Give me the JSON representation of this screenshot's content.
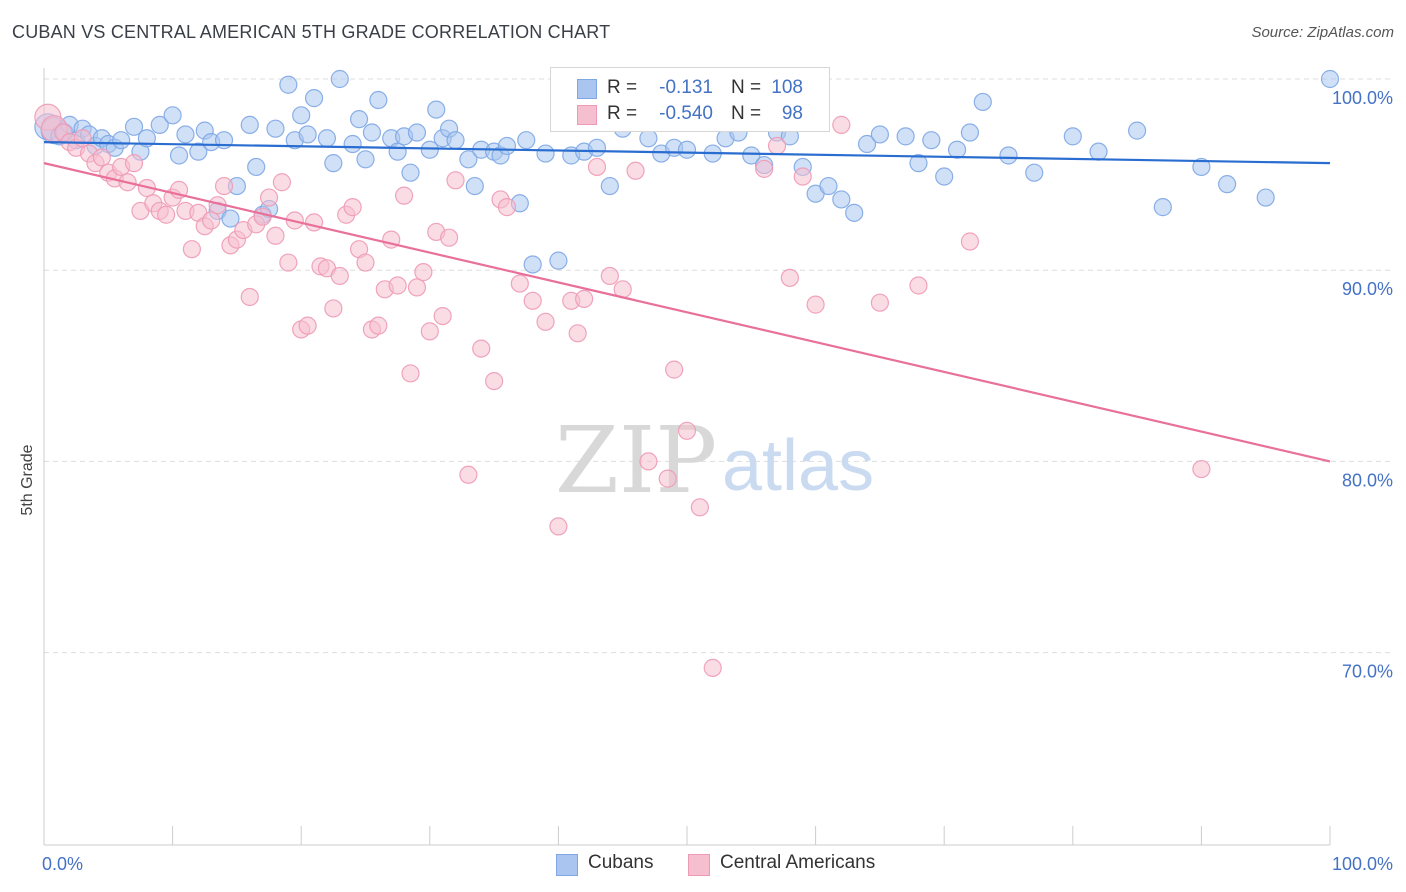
{
  "header": {
    "title": "CUBAN VS CENTRAL AMERICAN 5TH GRADE CORRELATION CHART",
    "source": "Source: ZipAtlas.com"
  },
  "watermark": {
    "zip": "ZIP",
    "atlas": "atlas"
  },
  "legend": {
    "r_label": "R =",
    "n_label": "N =",
    "rows": [
      {
        "series": "Cubans",
        "r": "-0.131",
        "n": "108",
        "color": "#6b9be0"
      },
      {
        "series": "Central Americans",
        "r": "-0.540",
        "n": "98",
        "color": "#f09ab5"
      }
    ]
  },
  "bottom_legend": {
    "items": [
      "Cubans",
      "Central Americans"
    ]
  },
  "colors": {
    "cubans_fill": "#aac6f0",
    "cubans_stroke": "#7ea7e4",
    "cubans_line": "#2a6dd0",
    "central_fill": "#f6bfd0",
    "central_stroke": "#ee9ab6",
    "central_line": "#e8709a",
    "grid": "#dddddd",
    "axis_text": "#4472c4"
  },
  "chart_data": {
    "type": "scatter",
    "title": "CUBAN VS CENTRAL AMERICAN 5TH GRADE CORRELATION CHART",
    "xlabel": "",
    "ylabel": "5th Grade",
    "x_tick_labels": [
      "0.0%",
      "100.0%"
    ],
    "y_tick_labels": [
      "100.0%",
      "90.0%",
      "80.0%",
      "70.0%"
    ],
    "y_ticks": [
      100,
      90,
      80,
      70
    ],
    "xlim": [
      0,
      100
    ],
    "ylim": [
      61,
      101.5
    ],
    "grid": true,
    "legend_position": "top-center",
    "series": [
      {
        "name": "Cubans",
        "r": -0.131,
        "n": 108,
        "trend": {
          "x": [
            0,
            100
          ],
          "y": [
            96.7,
            95.6
          ]
        },
        "x": [
          0.3,
          0.8,
          1.2,
          1.6,
          2.0,
          2.5,
          3.0,
          3.5,
          4.0,
          4.5,
          5.0,
          5.5,
          6.0,
          7.0,
          7.5,
          8.0,
          9.0,
          10.0,
          10.5,
          11.0,
          12.0,
          12.5,
          13.0,
          13.5,
          14.0,
          14.5,
          15.0,
          16.0,
          16.5,
          17.0,
          17.5,
          18.0,
          19.0,
          19.5,
          20.0,
          20.5,
          21.0,
          22.0,
          22.5,
          23.0,
          24.0,
          24.5,
          25.0,
          25.5,
          26.0,
          27.0,
          27.5,
          28.0,
          28.5,
          29.0,
          30.0,
          30.5,
          31.0,
          31.5,
          32.0,
          33.0,
          33.5,
          34.0,
          35.0,
          35.5,
          36.0,
          37.0,
          37.5,
          38.0,
          39.0,
          40.0,
          41.0,
          42.0,
          43.0,
          44.0,
          45.0,
          46.0,
          47.0,
          48.0,
          49.0,
          50.0,
          51.0,
          52.0,
          53.0,
          54.0,
          55.0,
          56.0,
          57.0,
          58.0,
          59.0,
          60.0,
          61.0,
          62.0,
          63.0,
          64.0,
          65.0,
          67.0,
          68.0,
          69.0,
          70.0,
          71.0,
          72.0,
          73.0,
          75.0,
          77.0,
          80.0,
          82.0,
          85.0,
          87.0,
          90.0,
          92.0,
          95.0,
          100.0
        ],
        "y": [
          97.5,
          97.3,
          97.0,
          97.2,
          97.6,
          96.8,
          97.4,
          97.1,
          96.5,
          96.9,
          96.6,
          96.4,
          96.8,
          97.5,
          96.2,
          96.9,
          97.6,
          98.1,
          96.0,
          97.1,
          96.2,
          97.3,
          96.7,
          93.1,
          96.8,
          92.7,
          94.4,
          97.6,
          95.4,
          92.9,
          93.2,
          97.4,
          99.7,
          96.8,
          98.1,
          97.1,
          99.0,
          96.9,
          95.6,
          100.0,
          96.6,
          97.9,
          95.8,
          97.2,
          98.9,
          96.9,
          96.2,
          97.0,
          95.1,
          97.2,
          96.3,
          98.4,
          96.9,
          97.4,
          96.8,
          95.8,
          94.4,
          96.3,
          96.2,
          96.0,
          96.5,
          93.5,
          96.8,
          90.3,
          96.1,
          90.5,
          96.0,
          96.2,
          96.4,
          94.4,
          97.4,
          97.8,
          96.9,
          96.1,
          96.4,
          96.3,
          98.2,
          96.1,
          96.9,
          97.2,
          96.0,
          95.5,
          97.2,
          97.0,
          95.4,
          94.0,
          94.4,
          93.7,
          93.0,
          96.6,
          97.1,
          97.0,
          95.6,
          96.8,
          94.9,
          96.3,
          97.2,
          98.8,
          96.0,
          95.1,
          97.0,
          96.2,
          97.3,
          93.3,
          95.4,
          94.5,
          93.8,
          100.0
        ]
      },
      {
        "name": "Central Americans",
        "r": -0.54,
        "n": 98,
        "trend": {
          "x": [
            0,
            100
          ],
          "y": [
            95.6,
            80.0
          ]
        },
        "x": [
          0.3,
          0.8,
          1.5,
          2.0,
          2.5,
          3.0,
          3.5,
          4.0,
          4.5,
          5.0,
          5.5,
          6.0,
          6.5,
          7.0,
          7.5,
          8.0,
          8.5,
          9.0,
          9.5,
          10.0,
          10.5,
          11.0,
          11.5,
          12.0,
          12.5,
          13.0,
          13.5,
          14.0,
          14.5,
          15.0,
          15.5,
          16.0,
          16.5,
          17.0,
          17.5,
          18.0,
          18.5,
          19.0,
          19.5,
          20.0,
          20.5,
          21.0,
          21.5,
          22.0,
          22.5,
          23.0,
          23.5,
          24.0,
          24.5,
          25.0,
          25.5,
          26.0,
          26.5,
          27.0,
          27.5,
          28.0,
          28.5,
          29.0,
          29.5,
          30.0,
          30.5,
          31.0,
          31.5,
          32.0,
          33.0,
          34.0,
          35.0,
          35.5,
          36.0,
          37.0,
          38.0,
          39.0,
          40.0,
          41.0,
          41.5,
          42.0,
          43.0,
          44.0,
          45.0,
          46.0,
          47.0,
          48.0,
          48.5,
          49.0,
          50.0,
          51.0,
          52.0,
          53.0,
          56.0,
          57.0,
          58.0,
          59.0,
          60.0,
          62.0,
          65.0,
          68.0,
          72.0,
          90.0
        ],
        "y": [
          98.0,
          97.4,
          97.2,
          96.7,
          96.4,
          96.9,
          96.1,
          95.6,
          95.9,
          95.1,
          94.8,
          95.4,
          94.6,
          95.6,
          93.1,
          94.3,
          93.5,
          93.1,
          92.9,
          93.8,
          94.2,
          93.1,
          91.1,
          93.0,
          92.3,
          92.6,
          93.4,
          94.4,
          91.3,
          91.6,
          92.1,
          88.6,
          92.4,
          92.8,
          93.8,
          91.8,
          94.6,
          90.4,
          92.6,
          86.9,
          87.1,
          92.5,
          90.2,
          90.1,
          88.0,
          89.7,
          92.9,
          93.3,
          91.1,
          90.4,
          86.9,
          87.1,
          89.0,
          91.6,
          89.2,
          93.9,
          84.6,
          89.1,
          89.9,
          86.8,
          92.0,
          87.6,
          91.7,
          94.7,
          79.3,
          85.9,
          84.2,
          93.7,
          93.3,
          89.3,
          88.4,
          87.3,
          76.6,
          88.4,
          86.7,
          88.5,
          95.4,
          89.7,
          89.0,
          95.2,
          80.0,
          99.9,
          79.1,
          84.8,
          81.6,
          77.6,
          69.2,
          99.9,
          95.3,
          96.5,
          89.6,
          94.9,
          88.2,
          97.6,
          88.3,
          89.2,
          91.5,
          79.6
        ]
      }
    ]
  }
}
